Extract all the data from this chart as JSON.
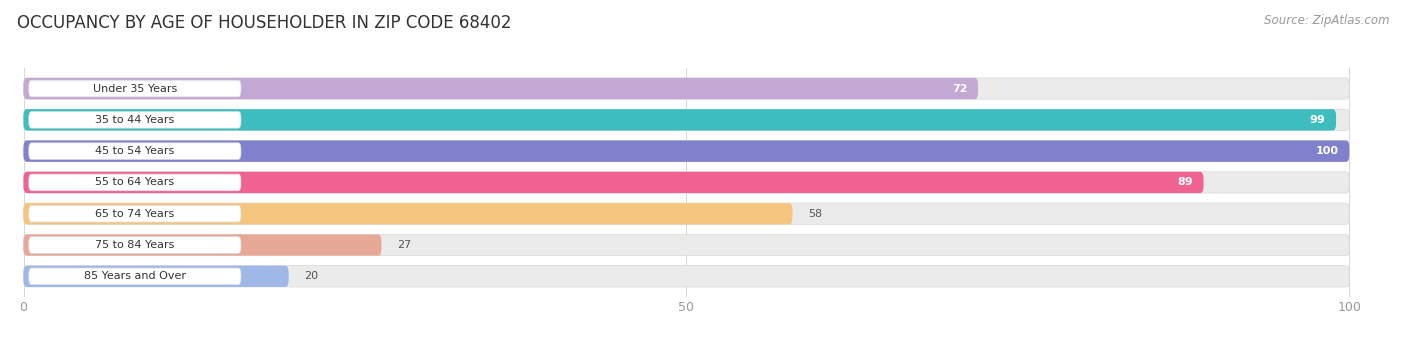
{
  "title": "OCCUPANCY BY AGE OF HOUSEHOLDER IN ZIP CODE 68402",
  "source": "Source: ZipAtlas.com",
  "categories": [
    "Under 35 Years",
    "35 to 44 Years",
    "45 to 54 Years",
    "55 to 64 Years",
    "65 to 74 Years",
    "75 to 84 Years",
    "85 Years and Over"
  ],
  "values": [
    72,
    99,
    100,
    89,
    58,
    27,
    20
  ],
  "bar_colors": [
    "#c4a8d4",
    "#3dbdbd",
    "#8080cc",
    "#f06292",
    "#f5c580",
    "#e8a898",
    "#a0b8e8"
  ],
  "track_color": "#ebebeb",
  "track_border_color": "#d8d8d8",
  "xlim": [
    0,
    100
  ],
  "xticks": [
    0,
    50,
    100
  ],
  "title_fontsize": 12,
  "source_fontsize": 8.5,
  "label_fontsize": 8,
  "value_fontsize": 8,
  "background_color": "#ffffff",
  "bar_height": 0.68,
  "label_box_facecolor": "#ffffff",
  "label_box_edgecolor": "#dddddd",
  "label_text_color": "#333333",
  "white_text_threshold": 70,
  "grid_color": "#d0d0d0",
  "tick_color": "#999999"
}
